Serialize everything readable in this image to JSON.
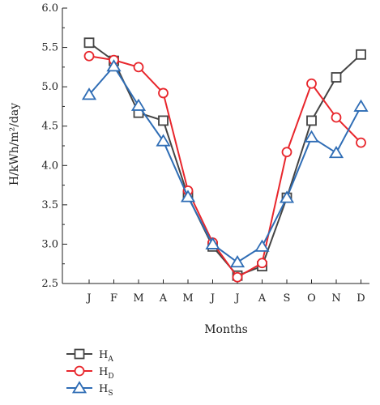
{
  "chart_data": {
    "type": "line",
    "xlabel": "Months",
    "ylabel": "H/kWh/m²/day",
    "categories": [
      "J",
      "F",
      "M",
      "A",
      "M",
      "J",
      "J",
      "A",
      "S",
      "O",
      "N",
      "D"
    ],
    "ylim": [
      2.5,
      6.0
    ],
    "yticks": [
      "2.5",
      "3.0",
      "3.5",
      "4.0",
      "4.5",
      "5.0",
      "5.5",
      "6.0"
    ],
    "grid": false,
    "legend_position": "bottom-left",
    "series": [
      {
        "name": "HA",
        "label_main": "H",
        "label_sub": "A",
        "marker": "square",
        "color": "#444444",
        "values": [
          5.56,
          5.33,
          4.67,
          4.57,
          3.61,
          2.97,
          2.6,
          2.72,
          3.59,
          4.57,
          5.12,
          5.41
        ]
      },
      {
        "name": "HD",
        "label_main": "H",
        "label_sub": "D",
        "marker": "circle",
        "color": "#e8262c",
        "values": [
          5.39,
          5.34,
          5.25,
          4.92,
          3.68,
          3.02,
          2.58,
          2.76,
          4.17,
          5.04,
          4.61,
          4.29
        ]
      },
      {
        "name": "HS",
        "label_main": "H",
        "label_sub": "S",
        "marker": "triangle",
        "color": "#2f6db5",
        "values": [
          4.9,
          5.26,
          4.76,
          4.31,
          3.6,
          3.0,
          2.77,
          2.97,
          3.59,
          4.36,
          4.16,
          4.75
        ]
      }
    ]
  }
}
